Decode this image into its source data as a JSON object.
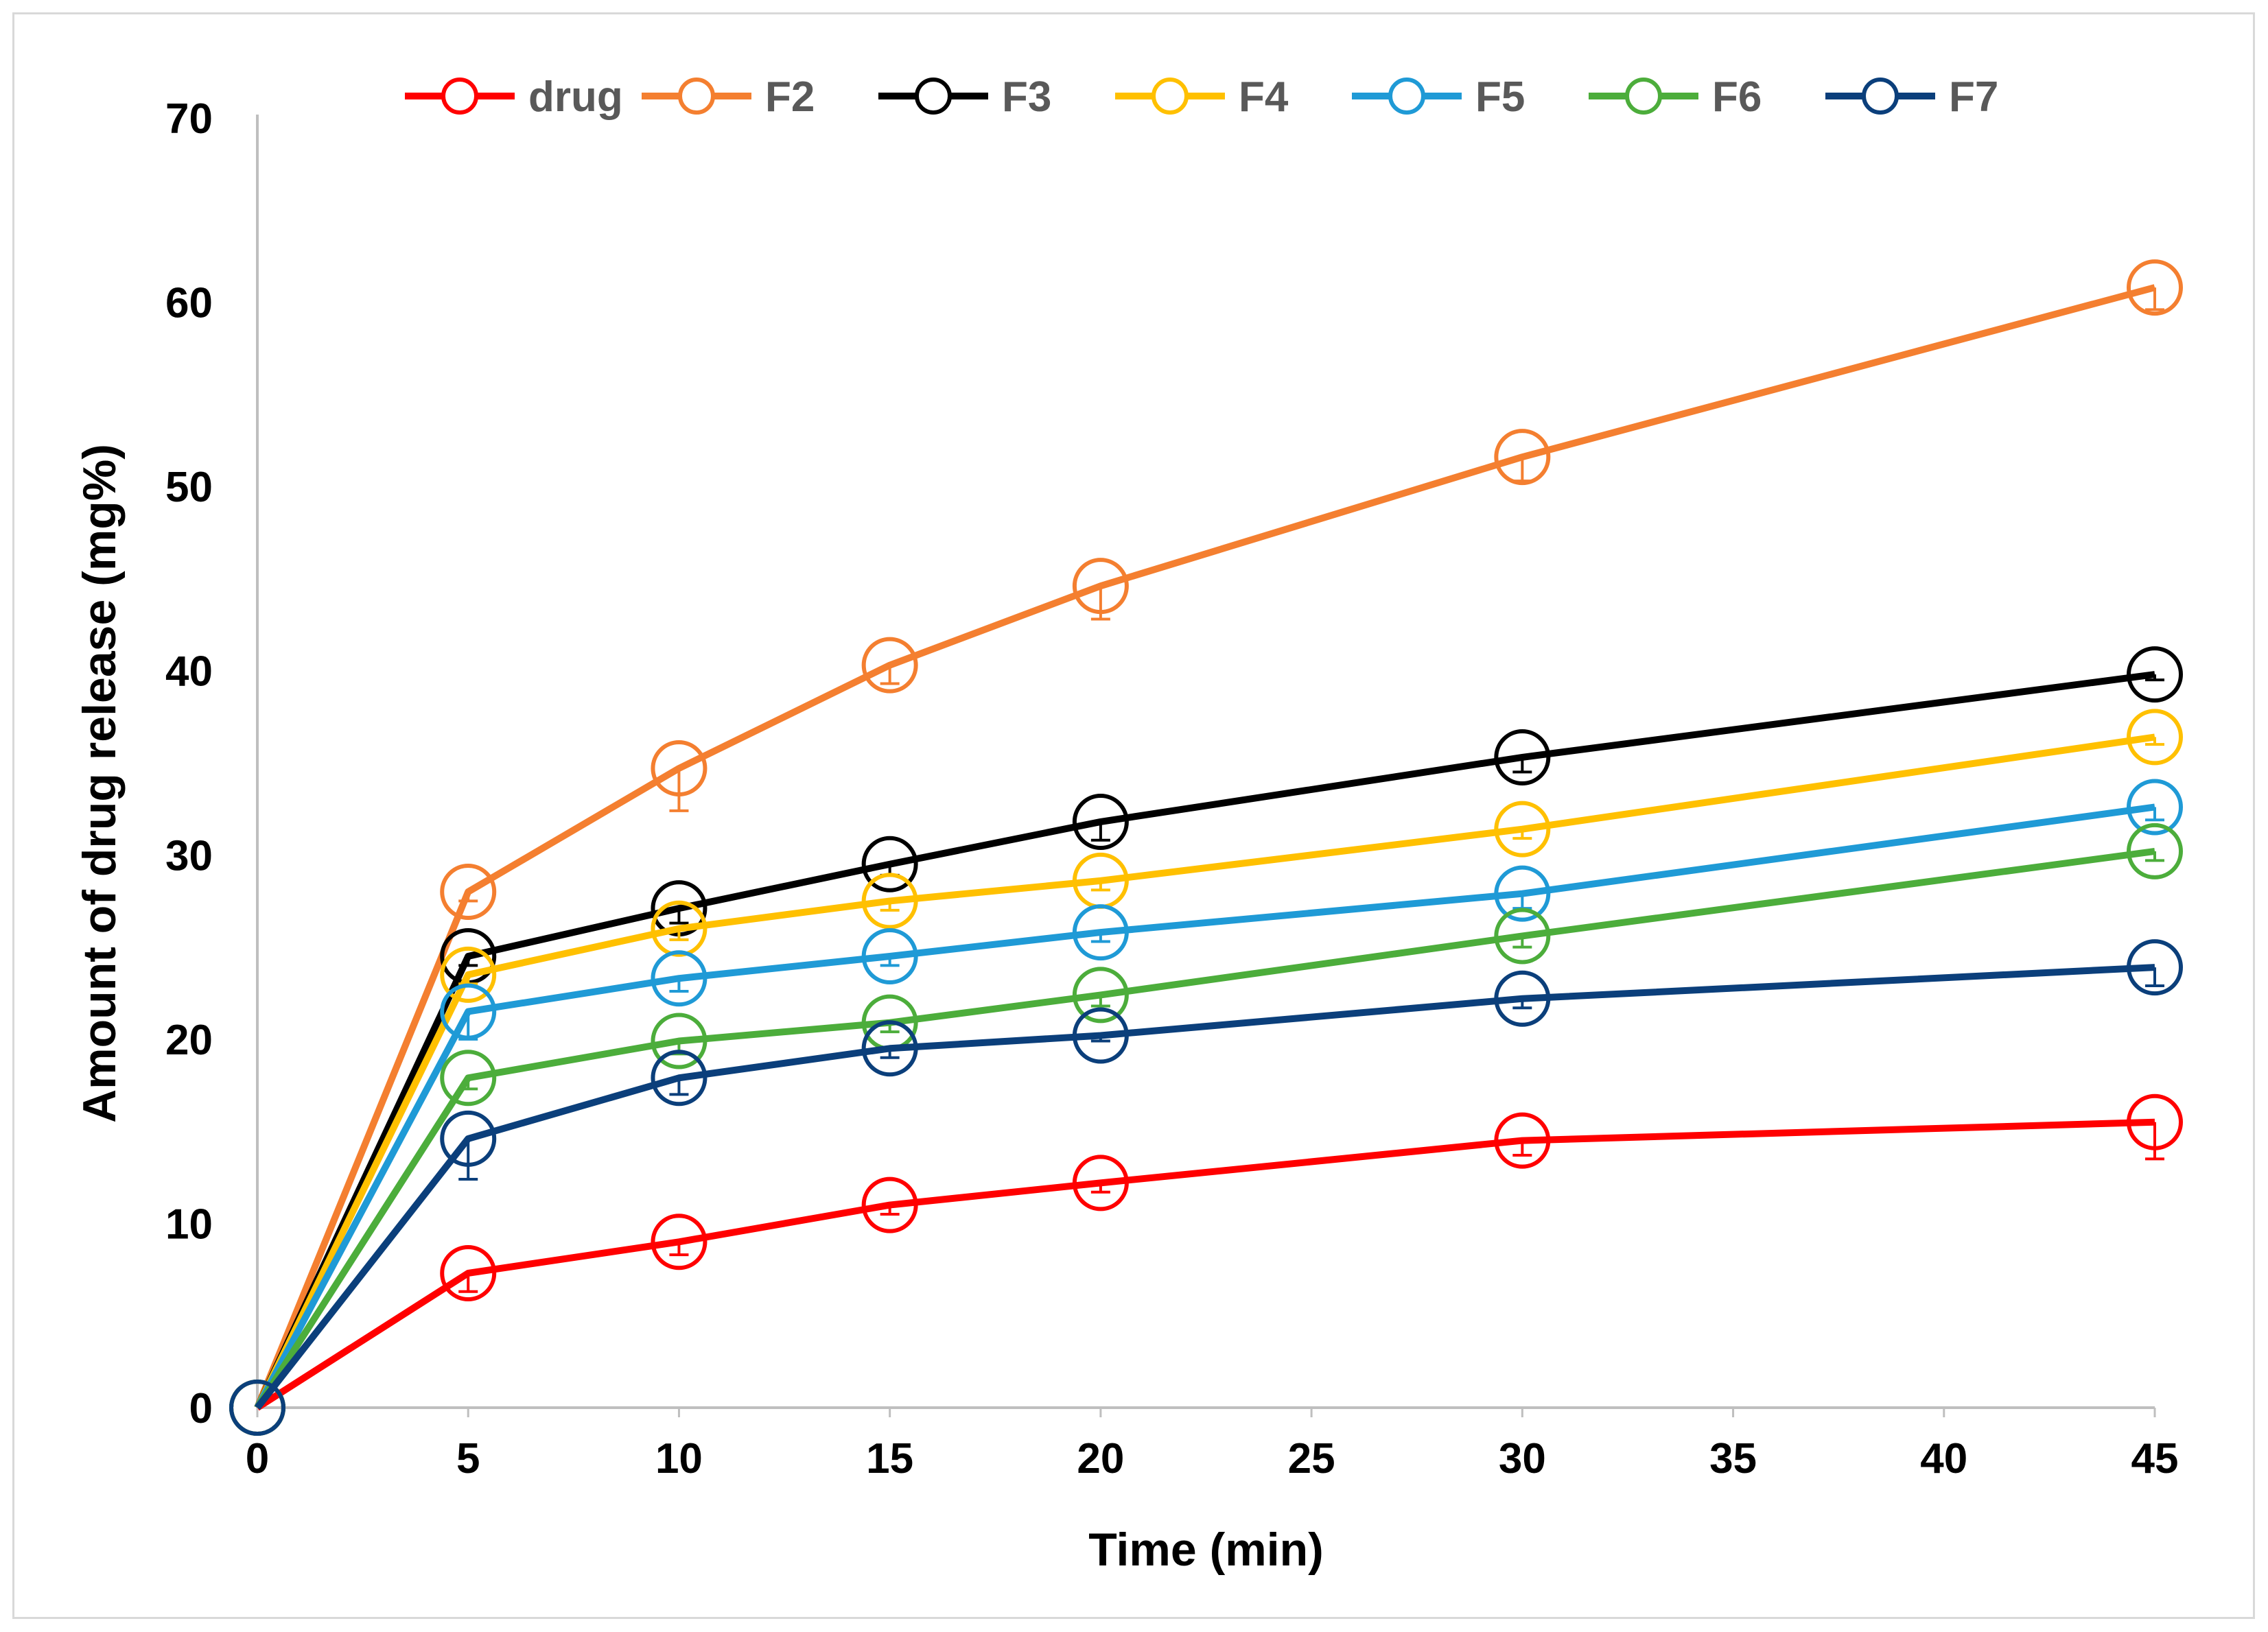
{
  "chart_data": {
    "type": "line",
    "title": "",
    "xlabel": "Time (min)",
    "ylabel": "Amount of drug release (mg%)",
    "x_axis_range": [
      0,
      45
    ],
    "y_axis_range": [
      0,
      70
    ],
    "x_ticks": [
      0,
      5,
      10,
      15,
      20,
      25,
      30,
      35,
      40,
      45
    ],
    "y_ticks": [
      0,
      10,
      20,
      30,
      40,
      50,
      60,
      70
    ],
    "legend_position": "top",
    "grid": false,
    "marker": "open-circle",
    "x": [
      0,
      5,
      10,
      15,
      20,
      30,
      45
    ],
    "series": [
      {
        "name": "drug",
        "color": "#ff0000",
        "values": [
          0,
          7.3,
          9.0,
          11.0,
          12.2,
          14.5,
          15.5
        ],
        "error": [
          0,
          1.0,
          0.7,
          0.5,
          0.5,
          0.8,
          2.0
        ]
      },
      {
        "name": "F2",
        "color": "#f47f30",
        "values": [
          0,
          28.0,
          34.7,
          40.3,
          44.6,
          51.6,
          60.8
        ],
        "error": [
          0,
          0.5,
          2.3,
          1.0,
          1.8,
          1.3,
          1.2
        ]
      },
      {
        "name": "F3",
        "color": "#000000",
        "values": [
          0,
          24.5,
          27.1,
          29.5,
          31.8,
          35.3,
          39.8
        ],
        "error": [
          0,
          0.5,
          0.8,
          0.6,
          1.0,
          0.8,
          0.3
        ]
      },
      {
        "name": "F4",
        "color": "#ffc000",
        "values": [
          0,
          23.5,
          26.0,
          27.5,
          28.6,
          31.4,
          36.4
        ],
        "error": [
          0,
          0.5,
          0.6,
          0.5,
          0.5,
          0.5,
          0.4
        ]
      },
      {
        "name": "F5",
        "color": "#1f9ad6",
        "values": [
          0,
          21.5,
          23.3,
          24.5,
          25.8,
          27.9,
          32.6
        ],
        "error": [
          0,
          1.5,
          0.7,
          0.5,
          0.5,
          0.8,
          0.7
        ]
      },
      {
        "name": "F6",
        "color": "#4cad3b",
        "values": [
          0,
          17.9,
          19.9,
          20.9,
          22.4,
          25.6,
          30.2
        ],
        "error": [
          0,
          0.6,
          0.7,
          0.5,
          0.6,
          0.6,
          0.5
        ]
      },
      {
        "name": "F7",
        "color": "#0b3f7b",
        "values": [
          0,
          14.6,
          17.9,
          19.5,
          20.2,
          22.2,
          23.9
        ],
        "error": [
          0,
          2.2,
          0.9,
          0.5,
          0.3,
          0.5,
          1.0
        ]
      }
    ]
  }
}
